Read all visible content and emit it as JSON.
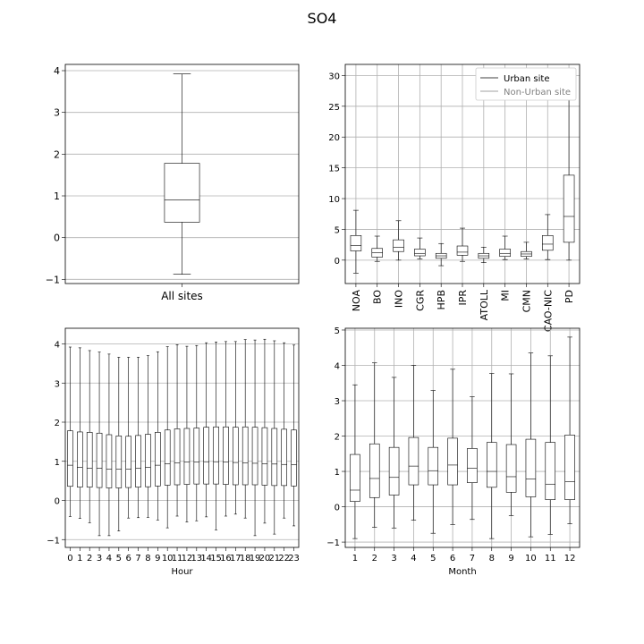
{
  "figure": {
    "title": "SO4"
  },
  "chart_data": [
    {
      "type": "box",
      "categories": [
        "All sites"
      ],
      "xlabel": "",
      "ylabel": "",
      "ylim": [
        -1.1,
        4.15
      ],
      "yticks": [
        -1,
        0,
        1,
        2,
        3,
        4
      ],
      "grid": "horizontal",
      "boxes": [
        {
          "whislo": -0.88,
          "q1": 0.37,
          "med": 0.9,
          "q3": 1.78,
          "whishi": 3.92
        }
      ]
    },
    {
      "type": "box",
      "categories": [
        "NOA",
        "BO",
        "INO",
        "CGR",
        "HPB",
        "IPR",
        "ATOLL",
        "MI",
        "CMN",
        "CAO-NIC",
        "PD"
      ],
      "xlabel": "",
      "ylabel": "",
      "ylim": [
        -3.8,
        31.8
      ],
      "yticks": [
        0,
        5,
        10,
        15,
        20,
        25,
        30
      ],
      "grid": "both",
      "legend": {
        "position": "top-right",
        "entries": [
          "Urban site",
          "Non-Urban site"
        ]
      },
      "boxes": [
        {
          "whislo": -2.1,
          "q1": 1.5,
          "med": 2.4,
          "q3": 4.0,
          "whishi": 8.1
        },
        {
          "whislo": -0.2,
          "q1": 0.5,
          "med": 1.2,
          "q3": 1.9,
          "whishi": 3.9
        },
        {
          "whislo": 0.0,
          "q1": 1.4,
          "med": 2.1,
          "q3": 3.3,
          "whishi": 6.4
        },
        {
          "whislo": 0.2,
          "q1": 0.7,
          "med": 1.1,
          "q3": 1.8,
          "whishi": 3.6
        },
        {
          "whislo": -0.9,
          "q1": 0.3,
          "med": 0.7,
          "q3": 1.1,
          "whishi": 2.7
        },
        {
          "whislo": -0.2,
          "q1": 0.8,
          "med": 1.3,
          "q3": 2.3,
          "whishi": 5.2
        },
        {
          "whislo": -0.4,
          "q1": 0.3,
          "med": 0.7,
          "q3": 1.1,
          "whishi": 2.1
        },
        {
          "whislo": 0.1,
          "q1": 0.6,
          "med": 1.1,
          "q3": 1.8,
          "whishi": 3.9
        },
        {
          "whislo": 0.2,
          "q1": 0.6,
          "med": 1.0,
          "q3": 1.4,
          "whishi": 2.9
        },
        {
          "whislo": 0.1,
          "q1": 1.6,
          "med": 2.6,
          "q3": 4.0,
          "whishi": 7.4
        },
        {
          "whislo": 0.0,
          "q1": 2.9,
          "med": 7.1,
          "q3": 13.8,
          "whishi": 30.5
        }
      ]
    },
    {
      "type": "box",
      "categories": [
        "0",
        "1",
        "2",
        "3",
        "4",
        "5",
        "6",
        "7",
        "8",
        "9",
        "10",
        "11",
        "12",
        "13",
        "14",
        "15",
        "16",
        "17",
        "18",
        "19",
        "20",
        "21",
        "22",
        "23"
      ],
      "xlabel": "Hour",
      "ylabel": "",
      "ylim": [
        -1.2,
        4.4
      ],
      "yticks": [
        -1,
        0,
        1,
        2,
        3,
        4
      ],
      "grid": "horizontal",
      "boxes": [
        {
          "whislo": -0.41,
          "q1": 0.36,
          "med": 0.9,
          "q3": 1.78,
          "whishi": 3.92
        },
        {
          "whislo": -0.46,
          "q1": 0.34,
          "med": 0.85,
          "q3": 1.75,
          "whishi": 3.9
        },
        {
          "whislo": -0.57,
          "q1": 0.34,
          "med": 0.82,
          "q3": 1.74,
          "whishi": 3.83
        },
        {
          "whislo": -0.9,
          "q1": 0.33,
          "med": 0.82,
          "q3": 1.72,
          "whishi": 3.79
        },
        {
          "whislo": -0.9,
          "q1": 0.32,
          "med": 0.8,
          "q3": 1.68,
          "whishi": 3.74
        },
        {
          "whislo": -0.78,
          "q1": 0.32,
          "med": 0.8,
          "q3": 1.65,
          "whishi": 3.66
        },
        {
          "whislo": -0.45,
          "q1": 0.33,
          "med": 0.8,
          "q3": 1.64,
          "whishi": 3.66
        },
        {
          "whislo": -0.44,
          "q1": 0.34,
          "med": 0.82,
          "q3": 1.66,
          "whishi": 3.66
        },
        {
          "whislo": -0.43,
          "q1": 0.35,
          "med": 0.85,
          "q3": 1.69,
          "whishi": 3.7
        },
        {
          "whislo": -0.5,
          "q1": 0.37,
          "med": 0.9,
          "q3": 1.74,
          "whishi": 3.8
        },
        {
          "whislo": -0.7,
          "q1": 0.39,
          "med": 0.94,
          "q3": 1.8,
          "whishi": 3.93
        },
        {
          "whislo": -0.4,
          "q1": 0.4,
          "med": 0.96,
          "q3": 1.83,
          "whishi": 3.98
        },
        {
          "whislo": -0.55,
          "q1": 0.41,
          "med": 0.98,
          "q3": 1.84,
          "whishi": 3.94
        },
        {
          "whislo": -0.52,
          "q1": 0.42,
          "med": 0.98,
          "q3": 1.85,
          "whishi": 3.96
        },
        {
          "whislo": -0.42,
          "q1": 0.42,
          "med": 0.99,
          "q3": 1.87,
          "whishi": 4.03
        },
        {
          "whislo": -0.75,
          "q1": 0.42,
          "med": 0.99,
          "q3": 1.88,
          "whishi": 4.05
        },
        {
          "whislo": -0.4,
          "q1": 0.41,
          "med": 0.98,
          "q3": 1.88,
          "whishi": 4.06
        },
        {
          "whislo": -0.35,
          "q1": 0.4,
          "med": 0.97,
          "q3": 1.87,
          "whishi": 4.06
        },
        {
          "whislo": -0.45,
          "q1": 0.4,
          "med": 0.96,
          "q3": 1.88,
          "whishi": 4.11
        },
        {
          "whislo": -0.9,
          "q1": 0.4,
          "med": 0.95,
          "q3": 1.87,
          "whishi": 4.1
        },
        {
          "whislo": -0.58,
          "q1": 0.39,
          "med": 0.94,
          "q3": 1.86,
          "whishi": 4.12
        },
        {
          "whislo": -0.86,
          "q1": 0.38,
          "med": 0.93,
          "q3": 1.84,
          "whishi": 4.08
        },
        {
          "whislo": -0.45,
          "q1": 0.38,
          "med": 0.92,
          "q3": 1.82,
          "whishi": 4.03
        },
        {
          "whislo": -0.65,
          "q1": 0.37,
          "med": 0.91,
          "q3": 1.8,
          "whishi": 3.97
        }
      ]
    },
    {
      "type": "box",
      "categories": [
        "1",
        "2",
        "3",
        "4",
        "5",
        "6",
        "7",
        "8",
        "9",
        "10",
        "11",
        "12"
      ],
      "xlabel": "Month",
      "ylabel": "",
      "ylim": [
        -1.15,
        5.05
      ],
      "yticks": [
        -1,
        0,
        1,
        2,
        3,
        4,
        5
      ],
      "grid": "both",
      "boxes": [
        {
          "whislo": -0.9,
          "q1": 0.15,
          "med": 0.47,
          "q3": 1.48,
          "whishi": 3.45
        },
        {
          "whislo": -0.58,
          "q1": 0.26,
          "med": 0.8,
          "q3": 1.78,
          "whishi": 4.07
        },
        {
          "whislo": -0.6,
          "q1": 0.33,
          "med": 0.83,
          "q3": 1.68,
          "whishi": 3.66
        },
        {
          "whislo": -0.38,
          "q1": 0.62,
          "med": 1.15,
          "q3": 1.96,
          "whishi": 4.0
        },
        {
          "whislo": -0.75,
          "q1": 0.62,
          "med": 1.02,
          "q3": 1.68,
          "whishi": 3.29
        },
        {
          "whislo": -0.5,
          "q1": 0.62,
          "med": 1.18,
          "q3": 1.94,
          "whishi": 3.89
        },
        {
          "whislo": -0.36,
          "q1": 0.68,
          "med": 1.09,
          "q3": 1.65,
          "whishi": 3.11
        },
        {
          "whislo": -0.9,
          "q1": 0.55,
          "med": 1.0,
          "q3": 1.82,
          "whishi": 3.77
        },
        {
          "whislo": -0.25,
          "q1": 0.41,
          "med": 0.85,
          "q3": 1.76,
          "whishi": 3.76
        },
        {
          "whislo": -0.85,
          "q1": 0.28,
          "med": 0.79,
          "q3": 1.91,
          "whishi": 4.35
        },
        {
          "whislo": -0.78,
          "q1": 0.2,
          "med": 0.64,
          "q3": 1.82,
          "whishi": 4.27
        },
        {
          "whislo": -0.48,
          "q1": 0.2,
          "med": 0.71,
          "q3": 2.03,
          "whishi": 4.8
        }
      ]
    }
  ]
}
